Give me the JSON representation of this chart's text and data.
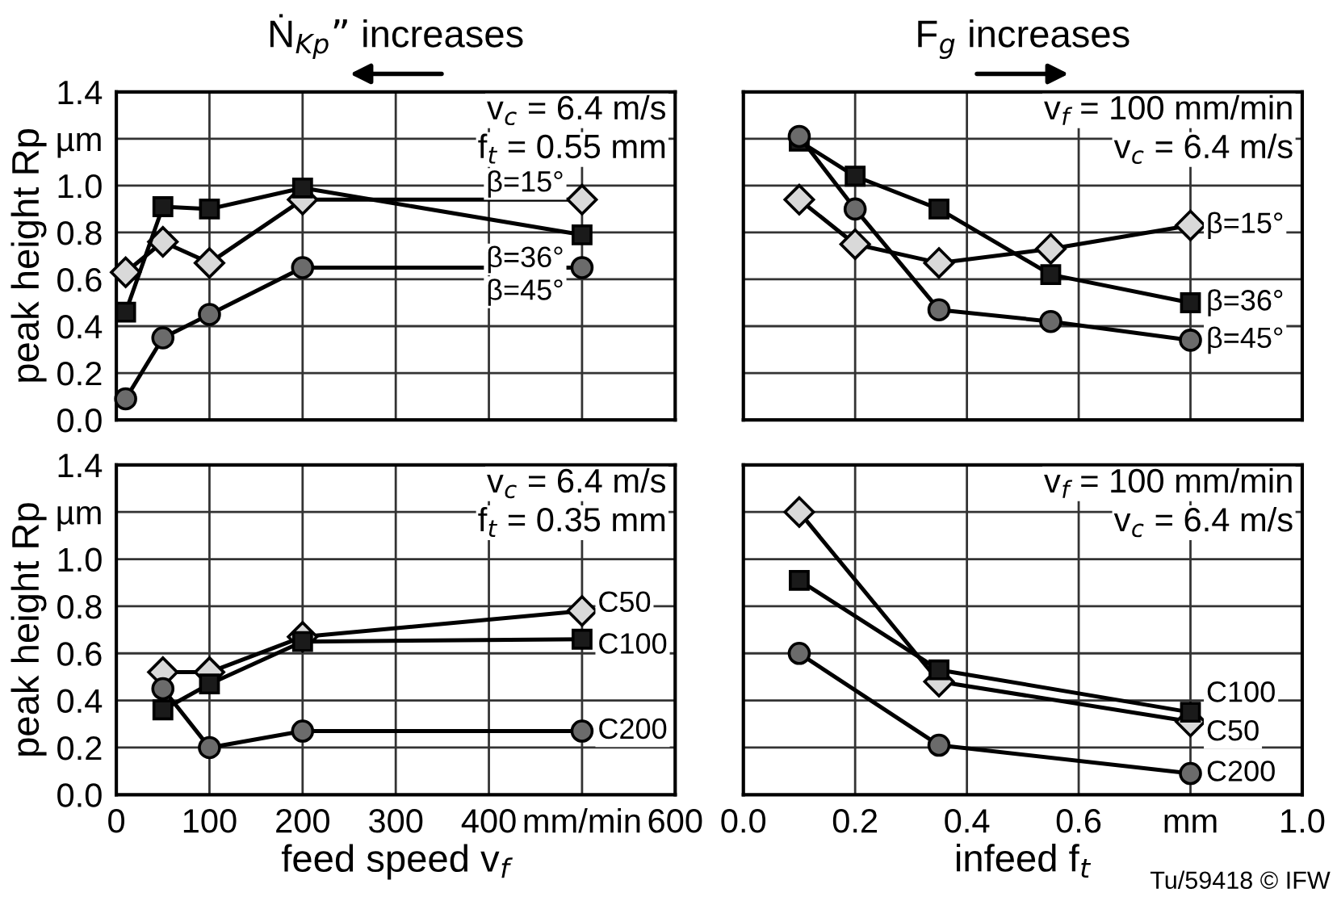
{
  "chart_data": [
    {
      "type": "line",
      "title": "Ṅ$_{Kp}$” increases",
      "ylabel": "peak height Rp",
      "xlim": [
        0,
        600
      ],
      "xticks": [
        0,
        100,
        200,
        300,
        400,
        500,
        600
      ],
      "ylim": [
        0,
        1.4
      ],
      "yticks": [
        {
          "value": 0,
          "label": "0.0"
        },
        0.2,
        0.4,
        0.6,
        0.8,
        {
          "value": 1,
          "label": "1.0"
        },
        {
          "value": 1.2,
          "label": "µm"
        },
        1.4
      ],
      "tick_labels": "y",
      "grid": true,
      "annotations": [
        "v$_{c}$ = 6.4 m/s",
        "f$_{t}$ = 0.55 mm"
      ],
      "series": [
        {
          "name": "β=15°",
          "color": "#d9d9d9",
          "marker": "diamond",
          "x": [
            10,
            50,
            100,
            200,
            500
          ],
          "values": [
            0.63,
            0.76,
            0.67,
            0.94,
            0.94
          ]
        },
        {
          "name": "β=36°",
          "color": "#1a1a1a",
          "marker": "square",
          "x": [
            10,
            50,
            100,
            200,
            500
          ],
          "values": [
            0.46,
            0.91,
            0.9,
            0.99,
            0.79
          ]
        },
        {
          "name": "β=45°",
          "color": "#6b6b6b",
          "marker": "circle",
          "x": [
            10,
            50,
            100,
            200,
            500
          ],
          "values": [
            0.09,
            0.35,
            0.45,
            0.65,
            0.65
          ]
        }
      ]
    },
    {
      "type": "line",
      "title": "F$_{g}$ increases",
      "xlim": [
        0,
        1.0
      ],
      "xticks": [
        0.0,
        0.2,
        0.4,
        0.6,
        0.8,
        1.0
      ],
      "ylim": [
        0,
        1.4
      ],
      "yticks": [
        0.0,
        0.2,
        0.4,
        0.6,
        0.8,
        1.0,
        1.2,
        1.4
      ],
      "tick_labels": false,
      "grid": true,
      "annotations": [
        "v$_{f}$ = 100 mm/min",
        "v$_{c}$ = 6.4 m/s"
      ],
      "series": [
        {
          "name": "β=15°",
          "color": "#d9d9d9",
          "marker": "diamond",
          "x": [
            0.1,
            0.2,
            0.35,
            0.55,
            0.8
          ],
          "values": [
            0.94,
            0.75,
            0.67,
            0.73,
            0.83
          ]
        },
        {
          "name": "β=36°",
          "color": "#1a1a1a",
          "marker": "square",
          "x": [
            0.1,
            0.2,
            0.35,
            0.55,
            0.8
          ],
          "values": [
            1.19,
            1.04,
            0.9,
            0.62,
            0.5
          ]
        },
        {
          "name": "β=45°",
          "color": "#6b6b6b",
          "marker": "circle",
          "x": [
            0.1,
            0.2,
            0.35,
            0.55,
            0.8
          ],
          "values": [
            1.21,
            0.9,
            0.47,
            0.42,
            0.34
          ]
        }
      ]
    },
    {
      "type": "line",
      "ylabel": "peak height Rp",
      "xlabel": "feed speed v$_{f}$",
      "xlim": [
        0,
        600
      ],
      "xticks": [
        0,
        100,
        200,
        300,
        400,
        {
          "value": 500,
          "label": "mm/min"
        },
        600
      ],
      "ylim": [
        0,
        1.4
      ],
      "yticks": [
        {
          "value": 0,
          "label": "0.0"
        },
        0.2,
        0.4,
        0.6,
        0.8,
        {
          "value": 1,
          "label": "1.0"
        },
        {
          "value": 1.2,
          "label": "µm"
        },
        1.4
      ],
      "grid": true,
      "annotations": [
        "v$_{c}$ = 6.4 m/s",
        "f$_{t}$ = 0.35 mm"
      ],
      "series": [
        {
          "name": "C50",
          "color": "#d9d9d9",
          "marker": "diamond",
          "x": [
            50,
            100,
            200,
            500
          ],
          "values": [
            0.52,
            0.52,
            0.67,
            0.78
          ]
        },
        {
          "name": "C100",
          "color": "#1a1a1a",
          "marker": "square",
          "x": [
            50,
            100,
            200,
            500
          ],
          "values": [
            0.36,
            0.47,
            0.65,
            0.66
          ]
        },
        {
          "name": "C200",
          "color": "#6b6b6b",
          "marker": "circle",
          "x": [
            50,
            100,
            200,
            500
          ],
          "values": [
            0.45,
            0.2,
            0.27,
            0.27
          ]
        }
      ]
    },
    {
      "type": "line",
      "xlabel": "infeed f$_{t}$",
      "xlim": [
        0,
        1.0
      ],
      "xticks": [
        {
          "value": 0,
          "label": "0.0"
        },
        0.2,
        0.4,
        0.6,
        {
          "value": 0.8,
          "label": "mm"
        },
        {
          "value": 1,
          "label": "1.0"
        }
      ],
      "ylim": [
        0,
        1.4
      ],
      "yticks": [
        0.0,
        0.2,
        0.4,
        0.6,
        0.8,
        1.0,
        1.2,
        1.4
      ],
      "tick_labels": "x",
      "grid": true,
      "annotations": [
        "v$_{f}$ = 100 mm/min",
        "v$_{c}$ = 6.4 m/s",
        "Tu/59418 © IFW"
      ],
      "series": [
        {
          "name": "C50",
          "color": "#d9d9d9",
          "marker": "diamond",
          "x": [
            0.1,
            0.35,
            0.8
          ],
          "values": [
            1.2,
            0.48,
            0.31
          ]
        },
        {
          "name": "C100",
          "color": "#1a1a1a",
          "marker": "square",
          "x": [
            0.1,
            0.35,
            0.8
          ],
          "values": [
            0.91,
            0.53,
            0.35
          ]
        },
        {
          "name": "C200",
          "color": "#6b6b6b",
          "marker": "circle",
          "x": [
            0.1,
            0.35,
            0.8
          ],
          "values": [
            0.6,
            0.21,
            0.09
          ]
        }
      ]
    }
  ]
}
